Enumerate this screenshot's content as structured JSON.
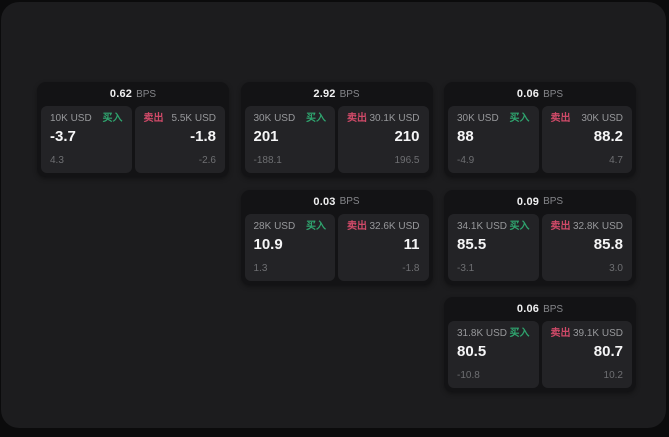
{
  "page": {
    "background": "#0b0b0c",
    "panel_background": "#1c1c1e"
  },
  "colors": {
    "buy_green": "#2fa56f",
    "sell_red": "#cf4a68",
    "card_background": "#131315",
    "tile_background": "#232326",
    "value_text": "#f5f5f6",
    "label_text": "#97989b",
    "sub_text": "#6e6f72"
  },
  "labels": {
    "bps_unit": "BPS",
    "buy": "买入",
    "sell": "卖出"
  },
  "cards": [
    {
      "bps": "0.62",
      "col": 1,
      "row": 1,
      "buy": {
        "amount": "10K USD",
        "value": "-3.7",
        "sub": "4.3"
      },
      "sell": {
        "amount": "5.5K USD",
        "value": "-1.8",
        "sub": "-2.6"
      }
    },
    {
      "bps": "2.92",
      "col": 2,
      "row": 1,
      "buy": {
        "amount": "30K USD",
        "value": "201",
        "sub": "-188.1"
      },
      "sell": {
        "amount": "30.1K USD",
        "value": "210",
        "sub": "196.5"
      }
    },
    {
      "bps": "0.06",
      "col": 3,
      "row": 1,
      "buy": {
        "amount": "30K USD",
        "value": "88",
        "sub": "-4.9"
      },
      "sell": {
        "amount": "30K USD",
        "value": "88.2",
        "sub": "4.7"
      }
    },
    {
      "bps": "0.03",
      "col": 2,
      "row": 2,
      "buy": {
        "amount": "28K USD",
        "value": "10.9",
        "sub": "1.3"
      },
      "sell": {
        "amount": "32.6K USD",
        "value": "11",
        "sub": "-1.8"
      }
    },
    {
      "bps": "0.09",
      "col": 3,
      "row": 2,
      "buy": {
        "amount": "34.1K USD",
        "value": "85.5",
        "sub": "-3.1"
      },
      "sell": {
        "amount": "32.8K USD",
        "value": "85.8",
        "sub": "3.0"
      }
    },
    {
      "bps": "0.06",
      "col": 3,
      "row": 3,
      "buy": {
        "amount": "31.8K USD",
        "value": "80.5",
        "sub": "-10.8"
      },
      "sell": {
        "amount": "39.1K USD",
        "value": "80.7",
        "sub": "10.2"
      }
    }
  ]
}
